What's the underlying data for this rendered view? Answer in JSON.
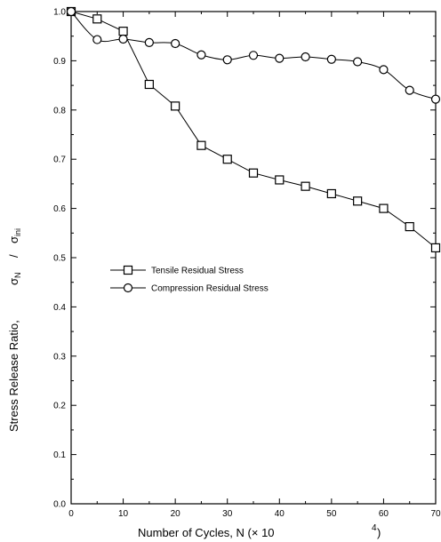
{
  "chart_data": {
    "type": "line",
    "title": "",
    "xlabel": "Number of Cycles, N (× 10",
    "xlabel_exponent": "4",
    "xlabel_close": ")",
    "ylabel": "Stress Release Ratio,",
    "ylabel_symbol_top": "σ",
    "ylabel_sub_top": "N",
    "ylabel_slash": "/",
    "ylabel_symbol_bottom": "σ",
    "ylabel_sub_bottom": "ini",
    "xlim": [
      0,
      70
    ],
    "ylim": [
      0,
      1.0
    ],
    "x_ticks": [
      "0",
      "10",
      "20",
      "30",
      "40",
      "50",
      "60",
      "70"
    ],
    "y_ticks": [
      "0.0",
      "0.1",
      "0.2",
      "0.3",
      "0.4",
      "0.5",
      "0.6",
      "0.7",
      "0.8",
      "0.9",
      "1.0"
    ],
    "grid": false,
    "legend_position": "middle-left",
    "series": [
      {
        "name": "Tensile Residual Stress",
        "marker": "square",
        "x": [
          0,
          5,
          10,
          15,
          20,
          25,
          30,
          35,
          40,
          45,
          50,
          55,
          60,
          65,
          70
        ],
        "y": [
          1.0,
          0.985,
          0.96,
          0.852,
          0.808,
          0.728,
          0.7,
          0.672,
          0.658,
          0.645,
          0.63,
          0.615,
          0.6,
          0.563,
          0.52
        ]
      },
      {
        "name": "Compression Residual Stress",
        "marker": "circle",
        "x": [
          0,
          5,
          10,
          15,
          20,
          25,
          30,
          35,
          40,
          45,
          50,
          55,
          60,
          65,
          70
        ],
        "y": [
          1.0,
          0.943,
          0.944,
          0.937,
          0.935,
          0.912,
          0.902,
          0.911,
          0.905,
          0.908,
          0.903,
          0.898,
          0.882,
          0.84,
          0.822
        ]
      }
    ]
  }
}
